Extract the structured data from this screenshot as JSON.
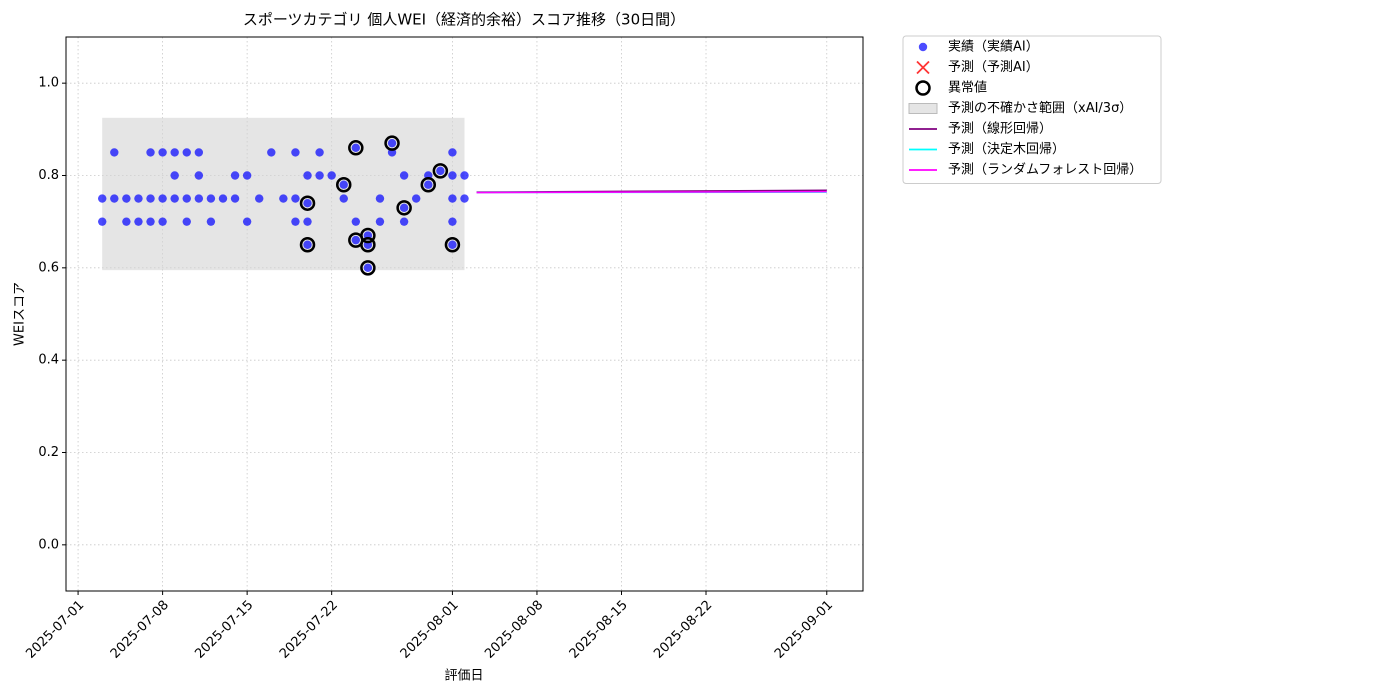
{
  "chart_data": {
    "type": "scatter",
    "title": "スポーツカテゴリ 個人WEI（経済的余裕）スコア推移（30日間）",
    "x_label": "評価日",
    "y_label": "WEIスコア",
    "xlim": [
      "2025-06-30",
      "2025-09-04"
    ],
    "xticks": [
      "2025-07-01",
      "2025-07-08",
      "2025-07-15",
      "2025-07-22",
      "2025-08-01",
      "2025-08-08",
      "2025-08-15",
      "2025-08-22",
      "2025-09-01"
    ],
    "ylim": [
      -0.1,
      1.1
    ],
    "yticks": [
      {
        "value": 0,
        "label": "0.0"
      },
      0.2,
      0.4,
      0.6,
      0.8,
      {
        "value": 1,
        "label": "1.0"
      }
    ],
    "grid": true,
    "legend": "outside-right",
    "series": [
      {
        "name": "実績（実績AI）",
        "style": "scatter",
        "color": "#0000ff",
        "x": [
          "2025-07-03",
          "2025-07-03",
          "2025-07-04",
          "2025-07-04",
          "2025-07-05",
          "2025-07-05",
          "2025-07-06",
          "2025-07-06",
          "2025-07-07",
          "2025-07-07",
          "2025-07-07",
          "2025-07-08",
          "2025-07-08",
          "2025-07-08",
          "2025-07-09",
          "2025-07-09",
          "2025-07-09",
          "2025-07-10",
          "2025-07-10",
          "2025-07-10",
          "2025-07-11",
          "2025-07-11",
          "2025-07-11",
          "2025-07-12",
          "2025-07-12",
          "2025-07-13",
          "2025-07-14",
          "2025-07-14",
          "2025-07-15",
          "2025-07-15",
          "2025-07-16",
          "2025-07-17",
          "2025-07-18",
          "2025-07-19",
          "2025-07-19",
          "2025-07-19",
          "2025-07-20",
          "2025-07-20",
          "2025-07-20",
          "2025-07-20",
          "2025-07-21",
          "2025-07-21",
          "2025-07-22",
          "2025-07-23",
          "2025-07-23",
          "2025-07-24",
          "2025-07-24",
          "2025-07-24",
          "2025-07-25",
          "2025-07-25",
          "2025-07-25",
          "2025-07-26",
          "2025-07-26",
          "2025-07-27",
          "2025-07-27",
          "2025-07-28",
          "2025-07-28",
          "2025-07-28",
          "2025-07-29",
          "2025-07-30",
          "2025-07-30",
          "2025-07-31",
          "2025-08-01",
          "2025-08-01",
          "2025-08-01",
          "2025-08-01",
          "2025-08-01",
          "2025-08-02",
          "2025-08-02"
        ],
        "values": [
          0.7,
          0.75,
          0.75,
          0.85,
          0.75,
          0.7,
          0.7,
          0.75,
          0.85,
          0.75,
          0.7,
          0.75,
          0.7,
          0.85,
          0.8,
          0.75,
          0.85,
          0.7,
          0.85,
          0.75,
          0.75,
          0.8,
          0.85,
          0.7,
          0.75,
          0.75,
          0.8,
          0.75,
          0.7,
          0.8,
          0.75,
          0.85,
          0.75,
          0.85,
          0.75,
          0.7,
          0.8,
          0.74,
          0.7,
          0.65,
          0.85,
          0.8,
          0.8,
          0.75,
          0.78,
          0.86,
          0.7,
          0.66,
          0.65,
          0.6,
          0.67,
          0.7,
          0.75,
          0.85,
          0.87,
          0.8,
          0.7,
          0.73,
          0.75,
          0.78,
          0.8,
          0.81,
          0.7,
          0.75,
          0.85,
          0.65,
          0.8,
          0.8,
          0.75
        ]
      },
      {
        "name": "予測（予測AI）",
        "style": "cross",
        "color": "#ff0000",
        "x": [],
        "values": []
      },
      {
        "name": "異常値",
        "style": "ring",
        "color": "#000000",
        "x": [
          "2025-07-20",
          "2025-07-20",
          "2025-07-23",
          "2025-07-24",
          "2025-07-24",
          "2025-07-25",
          "2025-07-25",
          "2025-07-25",
          "2025-07-27",
          "2025-07-28",
          "2025-07-30",
          "2025-07-31",
          "2025-08-01"
        ],
        "values": [
          0.74,
          0.65,
          0.78,
          0.86,
          0.66,
          0.65,
          0.6,
          0.67,
          0.87,
          0.73,
          0.78,
          0.81,
          0.65
        ]
      },
      {
        "name": "予測の不確かさ範囲（xAI/3σ）",
        "style": "band",
        "color": "#d3d3d3",
        "x": [
          "2025-07-03",
          "2025-08-02"
        ],
        "lower": 0.595,
        "upper": 0.925
      },
      {
        "name": "予測（線形回帰）",
        "style": "line",
        "color": "#800080",
        "x": [
          "2025-08-03",
          "2025-09-01"
        ],
        "values": [
          0.764,
          0.768
        ]
      },
      {
        "name": "予測（決定木回帰）",
        "style": "line",
        "color": "#00ffff",
        "x": [
          "2025-08-03",
          "2025-09-01"
        ],
        "values": [
          0.763,
          0.764
        ]
      },
      {
        "name": "予測（ランダムフォレスト回帰）",
        "style": "line",
        "color": "#ff00ff",
        "x": [
          "2025-08-03",
          "2025-09-01"
        ],
        "values": [
          0.763,
          0.765
        ]
      }
    ]
  }
}
